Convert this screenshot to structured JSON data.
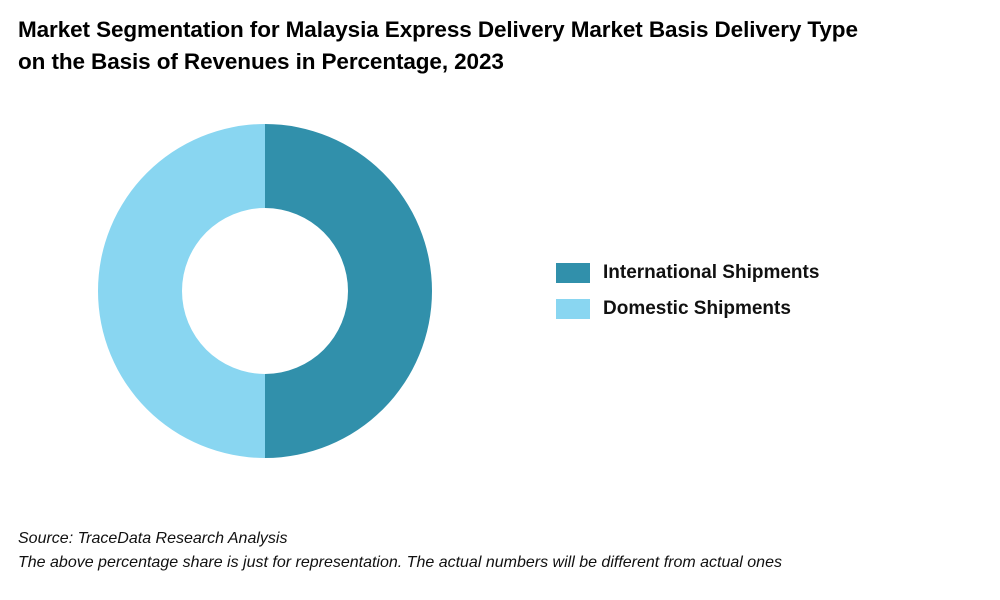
{
  "title": {
    "line1": "Market Segmentation for Malaysia Express Delivery Market Basis Delivery Type",
    "line2": "on the Basis of Revenues in Percentage, 2023"
  },
  "chart_data": {
    "type": "pie",
    "variant": "donut",
    "title": "Market Segmentation for Malaysia Express Delivery Market Basis Delivery Type on the Basis of Revenues in Percentage, 2023",
    "categories": [
      "International Shipments",
      "Domestic Shipments"
    ],
    "values": [
      50,
      50
    ],
    "colors": [
      "#3190AB",
      "#89D6F1"
    ],
    "legend": "right"
  },
  "legend": {
    "items": [
      {
        "label": "International Shipments",
        "color": "#3190AB"
      },
      {
        "label": "Domestic Shipments",
        "color": "#89D6F1"
      }
    ]
  },
  "footer": {
    "source": "Source: TraceData Research Analysis",
    "note": "The above percentage share is just for representation. The actual numbers will be different from actual ones"
  }
}
